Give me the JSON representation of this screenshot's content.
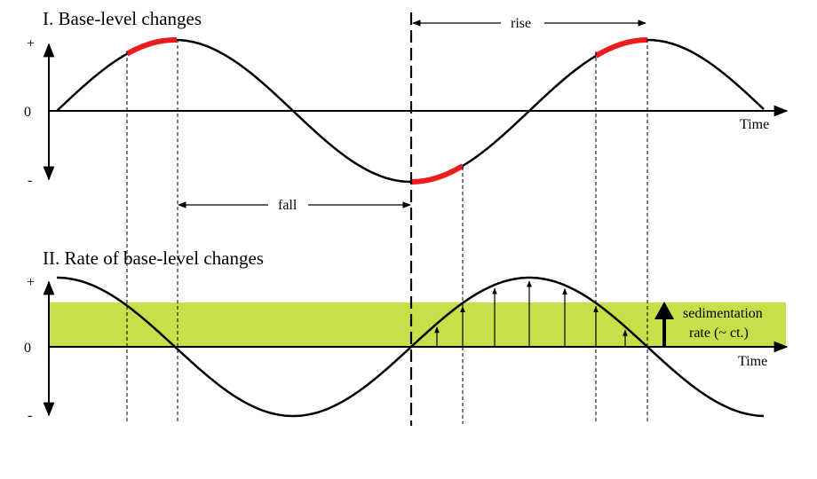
{
  "panel_top": {
    "title": "I. Base-level changes",
    "y_ticks": {
      "plus": "+",
      "zero": "0",
      "minus": "-"
    },
    "x_axis_label": "Time",
    "rise_label": "rise",
    "fall_label": "fall"
  },
  "panel_bottom": {
    "title": "II. Rate of base-level changes",
    "y_ticks": {
      "plus": "+",
      "zero": "0",
      "minus": "-"
    },
    "x_axis_label": "Time",
    "sedimentation_label_line1": "sedimentation",
    "sedimentation_label_line2": "rate (~ ct.)"
  },
  "colors": {
    "curve": "#000000",
    "highlight": "#ee1c1c",
    "band": "#c6e049",
    "dashed": "#000000"
  }
}
